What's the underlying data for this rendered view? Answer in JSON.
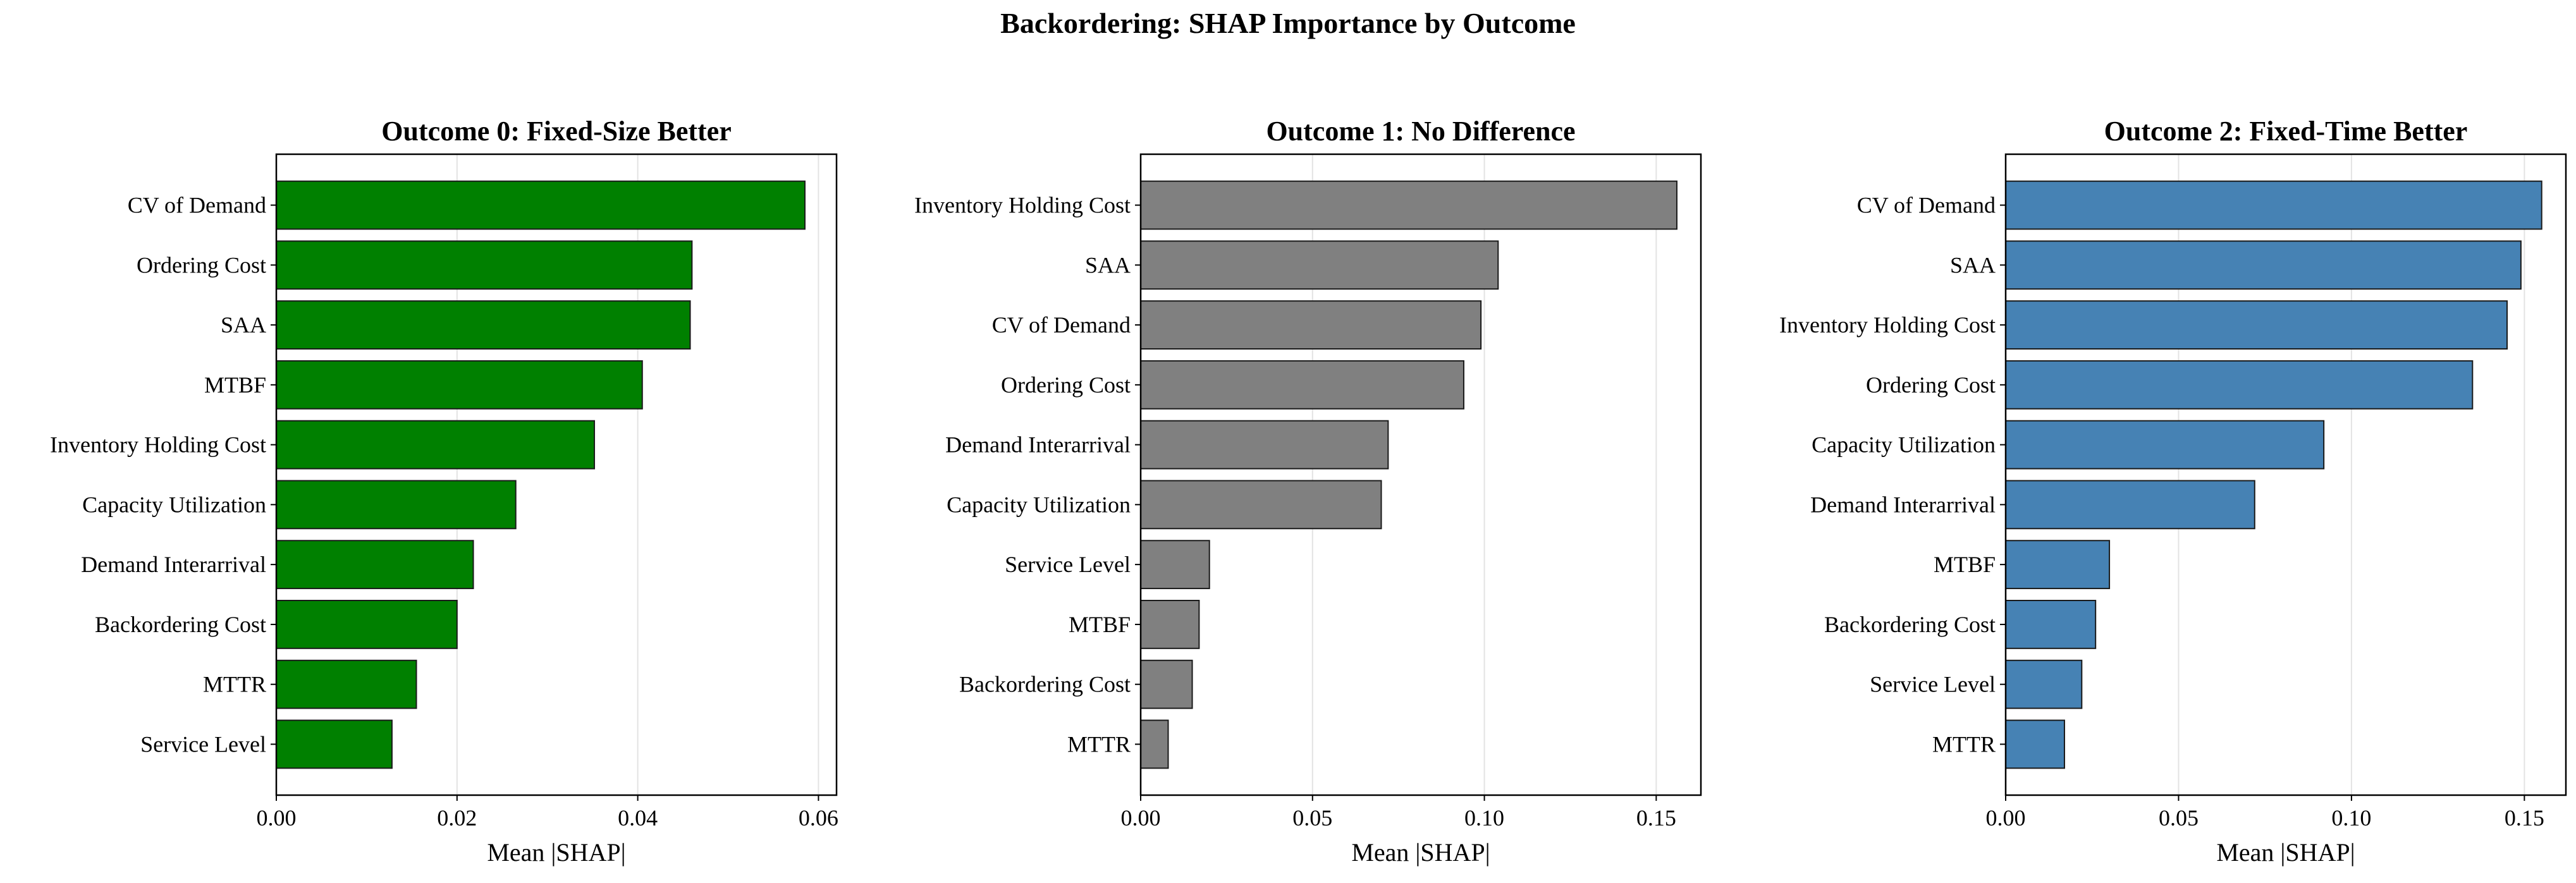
{
  "figure_title": "Backordering: SHAP Importance by Outcome",
  "chart_data": [
    {
      "type": "bar",
      "orientation": "horizontal",
      "title": "Outcome 0: Fixed-Size Better",
      "xlabel": "Mean |SHAP|",
      "ylabel": "",
      "xlim": [
        0,
        0.062
      ],
      "xticks": [
        0.0,
        0.02,
        0.04,
        0.06
      ],
      "xtick_labels": [
        "0.00",
        "0.02",
        "0.04",
        "0.06"
      ],
      "grid": "x",
      "color": "#008000",
      "categories": [
        "CV of Demand",
        "Ordering Cost",
        "SAA",
        "MTBF",
        "Inventory Holding Cost",
        "Capacity Utilization",
        "Demand Interarrival",
        "Backordering Cost",
        "MTTR",
        "Service Level"
      ],
      "values": [
        0.0585,
        0.046,
        0.0458,
        0.0405,
        0.0352,
        0.0265,
        0.0218,
        0.02,
        0.0155,
        0.0128
      ]
    },
    {
      "type": "bar",
      "orientation": "horizontal",
      "title": "Outcome 1: No Difference",
      "xlabel": "Mean |SHAP|",
      "ylabel": "",
      "xlim": [
        0,
        0.163
      ],
      "xticks": [
        0.0,
        0.05,
        0.1,
        0.15
      ],
      "xtick_labels": [
        "0.00",
        "0.05",
        "0.10",
        "0.15"
      ],
      "grid": "x",
      "color": "#808080",
      "categories": [
        "Inventory Holding Cost",
        "SAA",
        "CV of Demand",
        "Ordering Cost",
        "Demand Interarrival",
        "Capacity Utilization",
        "Service Level",
        "MTBF",
        "Backordering Cost",
        "MTTR"
      ],
      "values": [
        0.156,
        0.104,
        0.099,
        0.094,
        0.072,
        0.07,
        0.02,
        0.017,
        0.015,
        0.008
      ]
    },
    {
      "type": "bar",
      "orientation": "horizontal",
      "title": "Outcome 2: Fixed-Time Better",
      "xlabel": "Mean |SHAP|",
      "ylabel": "",
      "xlim": [
        0,
        0.162
      ],
      "xticks": [
        0.0,
        0.05,
        0.1,
        0.15
      ],
      "xtick_labels": [
        "0.00",
        "0.05",
        "0.10",
        "0.15"
      ],
      "grid": "x",
      "color": "#4682b4",
      "categories": [
        "CV of Demand",
        "SAA",
        "Inventory Holding Cost",
        "Ordering Cost",
        "Capacity Utilization",
        "Demand Interarrival",
        "MTBF",
        "Backordering Cost",
        "Service Level",
        "MTTR"
      ],
      "values": [
        0.155,
        0.149,
        0.145,
        0.135,
        0.092,
        0.072,
        0.03,
        0.026,
        0.022,
        0.017
      ]
    }
  ]
}
